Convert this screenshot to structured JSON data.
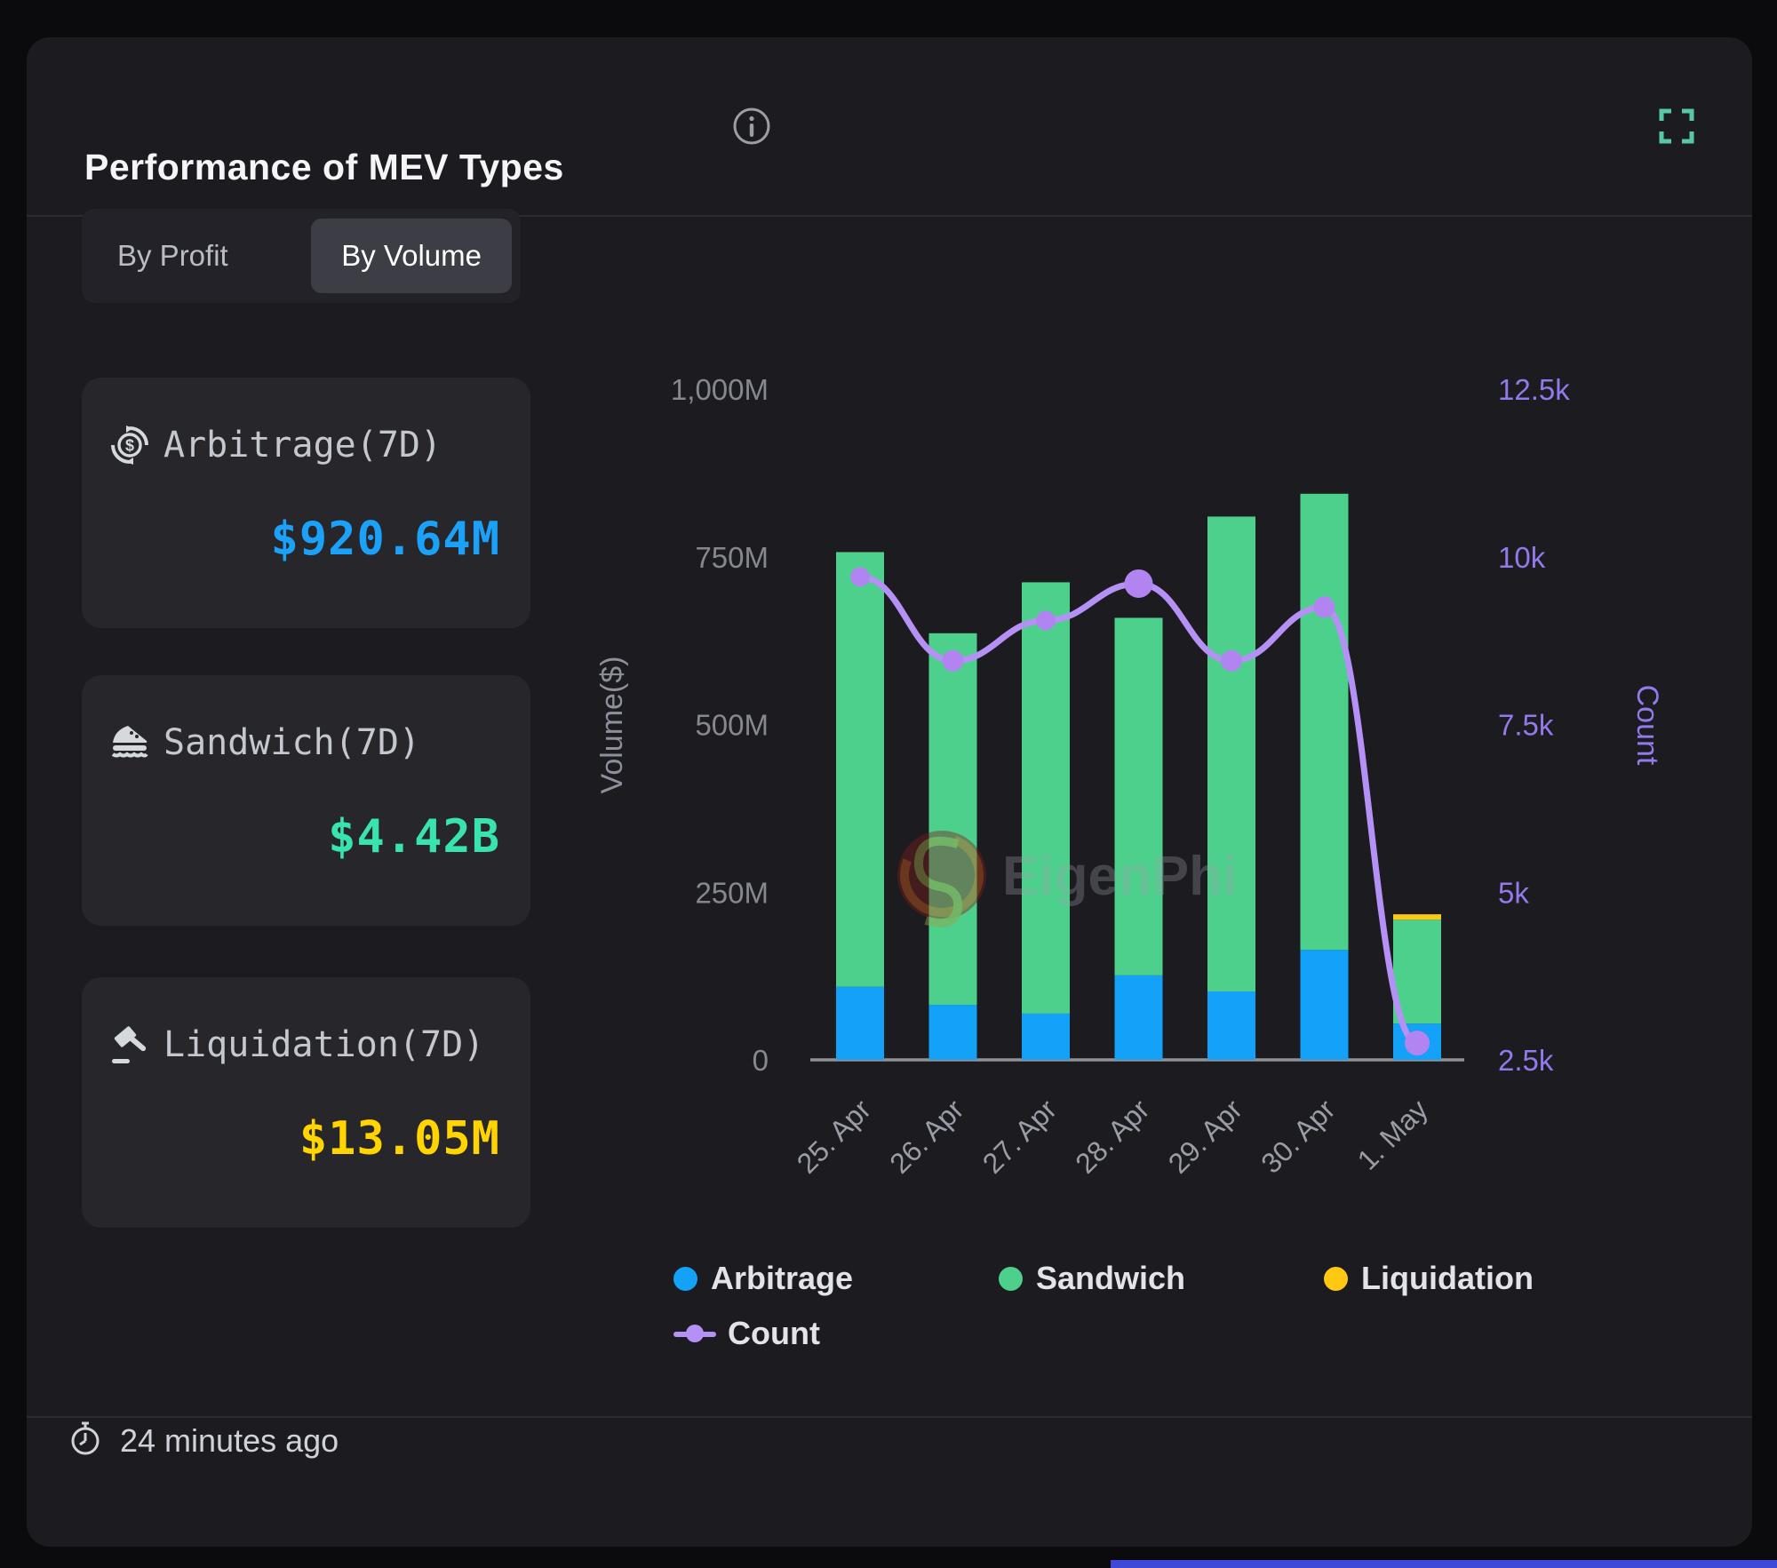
{
  "header": {
    "title": "Performance of MEV Types",
    "icons": {
      "info": "info-circle",
      "fullscreen": "expand-corners"
    }
  },
  "tabs": [
    {
      "label": "By Profit",
      "active": false
    },
    {
      "label": "By Volume",
      "active": true
    }
  ],
  "cards": [
    {
      "icon": "dollar-cycle",
      "label": "Arbitrage(7D)",
      "value": "$920.64M",
      "value_color": "#1ba2f8"
    },
    {
      "icon": "sandwich",
      "label": "Sandwich(7D)",
      "value": "$4.42B",
      "value_color": "#38e3ae"
    },
    {
      "icon": "gavel",
      "label": "Liquidation(7D)",
      "value": "$13.05M",
      "value_color": "#ffd400"
    }
  ],
  "chart_data": {
    "type": "bar",
    "subtype": "stacked-bars-with-line",
    "categories": [
      "25. Apr",
      "26. Apr",
      "27. Apr",
      "28. Apr",
      "29. Apr",
      "30. Apr",
      "1. May"
    ],
    "series": [
      {
        "name": "Arbitrage",
        "type": "bar",
        "color": "#14a1f8",
        "axis": "left",
        "values": [
          109,
          82,
          69,
          126,
          102,
          164,
          54
        ]
      },
      {
        "name": "Sandwich",
        "type": "bar",
        "color": "#4ed08d",
        "axis": "left",
        "values": [
          648,
          554,
          643,
          533,
          708,
          680,
          155
        ]
      },
      {
        "name": "Liquidation",
        "type": "bar",
        "color": "#ffc813",
        "axis": "left",
        "values": [
          0,
          0,
          0,
          0,
          0,
          0,
          8
        ]
      },
      {
        "name": "Count",
        "type": "line",
        "color": "#b590f5",
        "axis": "right",
        "values": [
          9700,
          8450,
          9050,
          9600,
          8450,
          9250,
          2750
        ]
      }
    ],
    "left_axis": {
      "title": "Volume($)",
      "min": 0,
      "max": 1000,
      "tick_values": [
        0,
        250,
        500,
        750,
        1000
      ],
      "ticks": [
        "0",
        "250M",
        "500M",
        "750M",
        "1,000M"
      ]
    },
    "right_axis": {
      "title": "Count",
      "min": 2500,
      "max": 12500,
      "tick_values": [
        2500,
        5000,
        7500,
        10000,
        12500
      ],
      "ticks": [
        "2.5k",
        "5k",
        "7.5k",
        "10k",
        "12.5k"
      ]
    },
    "grid": false,
    "legend_position": "bottom",
    "watermark": "EigenPhi"
  },
  "legend": [
    {
      "label": "Arbitrage",
      "color": "#14a1f8",
      "marker": "dot",
      "row": 1
    },
    {
      "label": "Sandwich",
      "color": "#4ed08d",
      "marker": "dot",
      "row": 1
    },
    {
      "label": "Liquidation",
      "color": "#ffc813",
      "marker": "dot",
      "row": 1
    },
    {
      "label": "Count",
      "color": "#b590f5",
      "marker": "line",
      "row": 2
    }
  ],
  "footer": {
    "updated": "24 minutes ago",
    "icon": "clock"
  },
  "colors": {
    "page_bg": "#0b0b0d",
    "panel_bg": "#1b1b20",
    "card_bg": "#26262b",
    "accent_teal": "#58c7a3",
    "axis_text": "#85888f",
    "count_purple": "#9379ec"
  }
}
